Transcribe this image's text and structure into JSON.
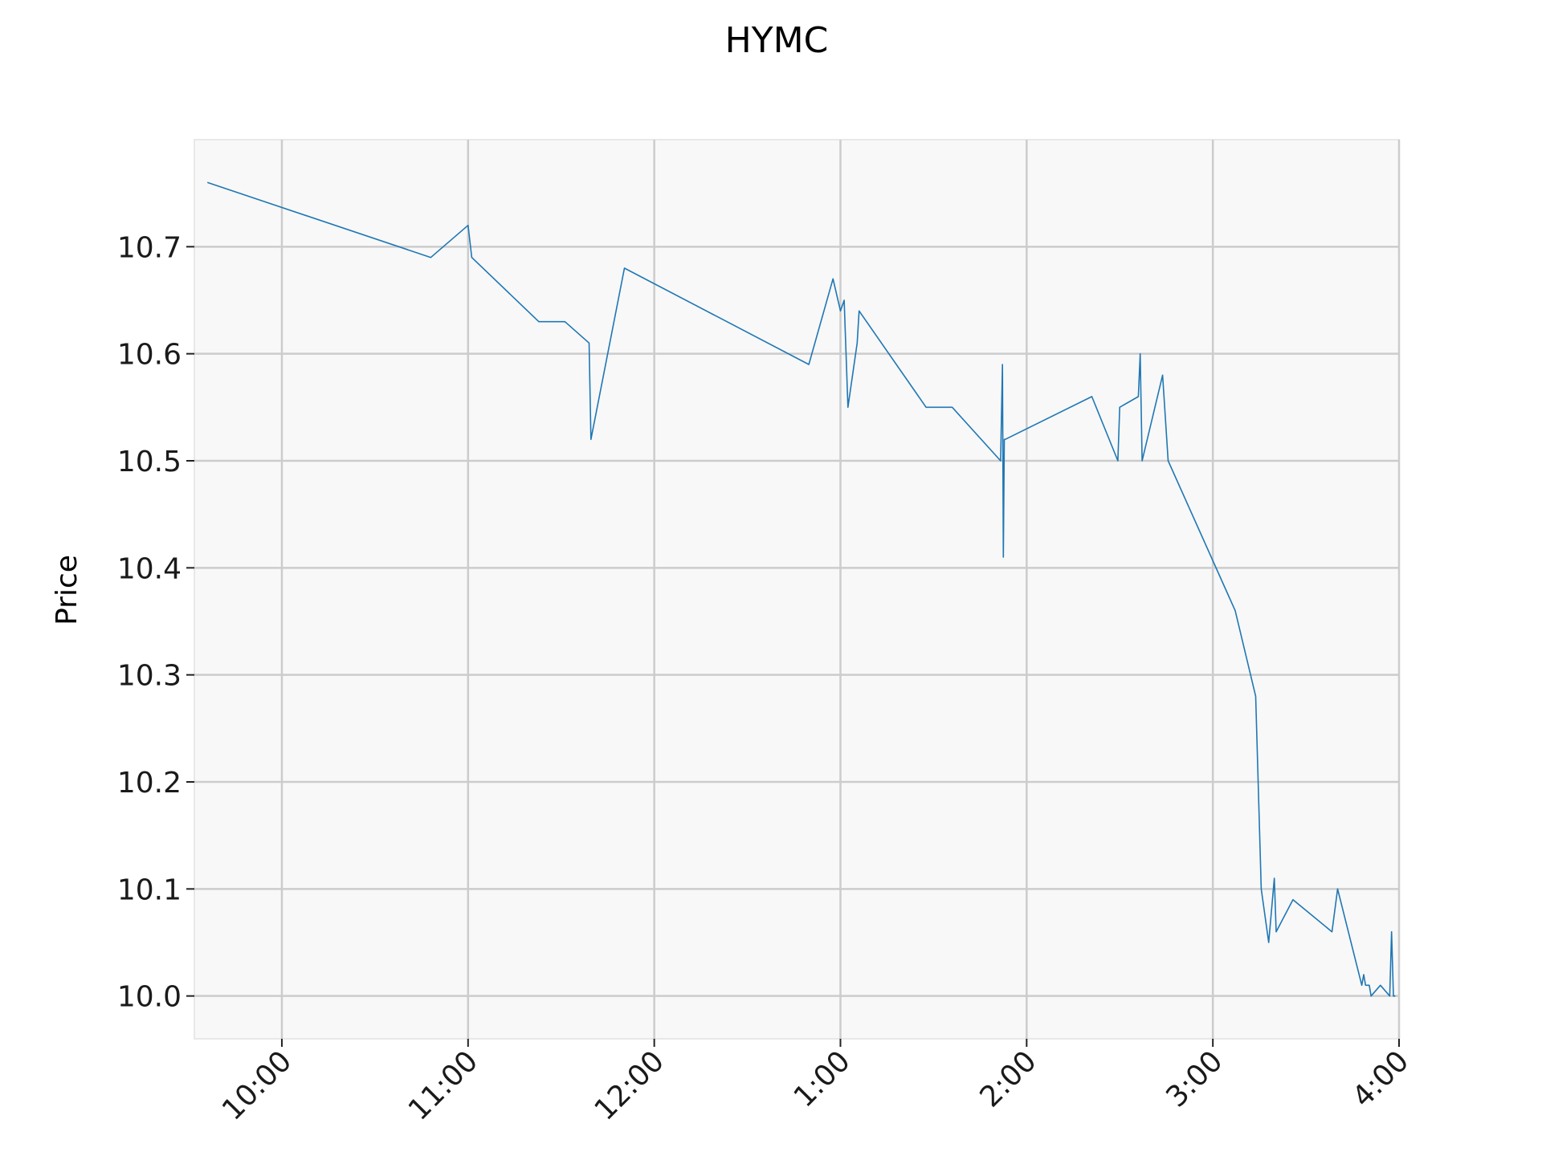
{
  "chart_data": {
    "type": "line",
    "title": "HYMC",
    "xlabel": "",
    "ylabel": "Price",
    "grid": true,
    "colors": {
      "line": "#1f77b4",
      "plot_bg": "#f8f8f8",
      "grid": "#cccccc",
      "frame": "#e8e8e8"
    },
    "x_unit": "hours since midnight (time of day)",
    "xlim": [
      9.53,
      16.0
    ],
    "ylim": [
      9.96,
      10.8
    ],
    "x_ticks": [
      {
        "v": 10,
        "label": "10:00"
      },
      {
        "v": 11,
        "label": "11:00"
      },
      {
        "v": 12,
        "label": "12:00"
      },
      {
        "v": 13,
        "label": "1:00"
      },
      {
        "v": 14,
        "label": "2:00"
      },
      {
        "v": 15,
        "label": "3:00"
      },
      {
        "v": 16,
        "label": "4:00"
      }
    ],
    "y_ticks": [
      {
        "v": 10.0,
        "label": "10.0"
      },
      {
        "v": 10.1,
        "label": "10.1"
      },
      {
        "v": 10.2,
        "label": "10.2"
      },
      {
        "v": 10.3,
        "label": "10.3"
      },
      {
        "v": 10.4,
        "label": "10.4"
      },
      {
        "v": 10.5,
        "label": "10.5"
      },
      {
        "v": 10.6,
        "label": "10.6"
      },
      {
        "v": 10.7,
        "label": "10.7"
      }
    ],
    "series": [
      {
        "x": [
          9.6,
          10.8,
          11.0,
          11.02,
          11.38,
          11.52,
          11.65,
          11.66,
          11.84,
          12.83,
          12.96,
          13.0,
          13.02,
          13.04,
          13.09,
          13.1,
          13.46,
          13.6,
          13.86,
          13.87,
          13.875,
          13.88,
          13.885,
          14.35,
          14.49,
          14.5,
          14.6,
          14.61,
          14.62,
          14.73,
          14.76,
          15.12,
          15.23,
          15.26,
          15.3,
          15.33,
          15.34,
          15.43,
          15.64,
          15.67,
          15.8,
          15.81,
          15.82,
          15.84,
          15.85,
          15.9,
          15.95,
          15.96,
          15.97,
          15.98
        ],
        "y": [
          10.76,
          10.69,
          10.72,
          10.69,
          10.63,
          10.63,
          10.61,
          10.52,
          10.68,
          10.59,
          10.67,
          10.64,
          10.65,
          10.55,
          10.61,
          10.64,
          10.55,
          10.55,
          10.5,
          10.59,
          10.41,
          10.52,
          10.52,
          10.56,
          10.5,
          10.55,
          10.56,
          10.6,
          10.5,
          10.58,
          10.5,
          10.36,
          10.28,
          10.1,
          10.05,
          10.11,
          10.06,
          10.09,
          10.06,
          10.1,
          10.01,
          10.02,
          10.01,
          10.01,
          10.0,
          10.01,
          10.0,
          10.06,
          10.0,
          10.0
        ]
      }
    ]
  }
}
